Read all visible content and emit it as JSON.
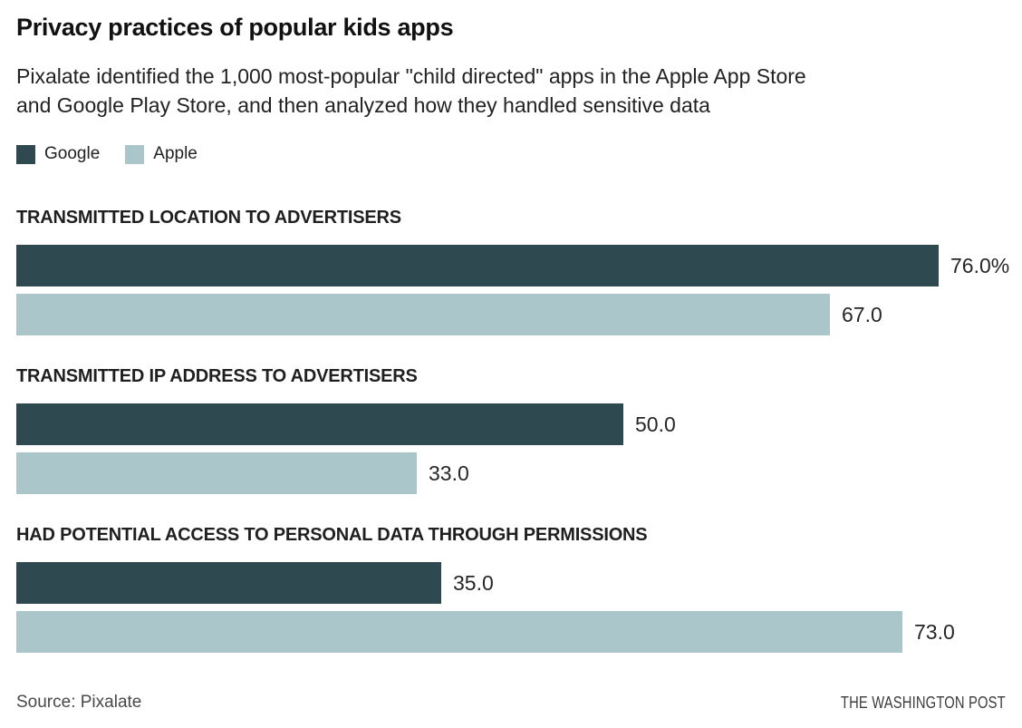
{
  "header": {
    "title": "Privacy practices of popular kids apps",
    "subtitle_lines": [
      "Pixalate identified the 1,000 most-popular \"child directed\" apps in the Apple App Store",
      "and Google Play Store, and then analyzed how they handled sensitive data"
    ]
  },
  "legend": {
    "items": [
      {
        "label": "Google",
        "color": "#2e4a50"
      },
      {
        "label": "Apple",
        "color": "#aac6ca"
      }
    ]
  },
  "footer": {
    "source": "Source: Pixalate",
    "credit": "THE WASHINGTON POST"
  },
  "chart_data": {
    "type": "bar",
    "orientation": "horizontal",
    "title": "Privacy practices of popular kids apps",
    "categories": [
      "TRANSMITTED LOCATION TO ADVERTISERS",
      "TRANSMITTED IP ADDRESS TO ADVERTISERS",
      "HAD POTENTIAL ACCESS TO PERSONAL DATA THROUGH PERMISSIONS"
    ],
    "series": [
      {
        "name": "Google",
        "color": "#2e4a50",
        "values": [
          76.0,
          50.0,
          35.0
        ]
      },
      {
        "name": "Apple",
        "color": "#aac6ca",
        "values": [
          67.0,
          33.0,
          73.0
        ]
      }
    ],
    "value_labels": [
      [
        "76.0%",
        "67.0"
      ],
      [
        "50.0",
        "33.0"
      ],
      [
        "35.0",
        "73.0"
      ]
    ],
    "unit": "%",
    "xlim": [
      0,
      81.5
    ],
    "grid": false,
    "legend_position": "top-left"
  }
}
